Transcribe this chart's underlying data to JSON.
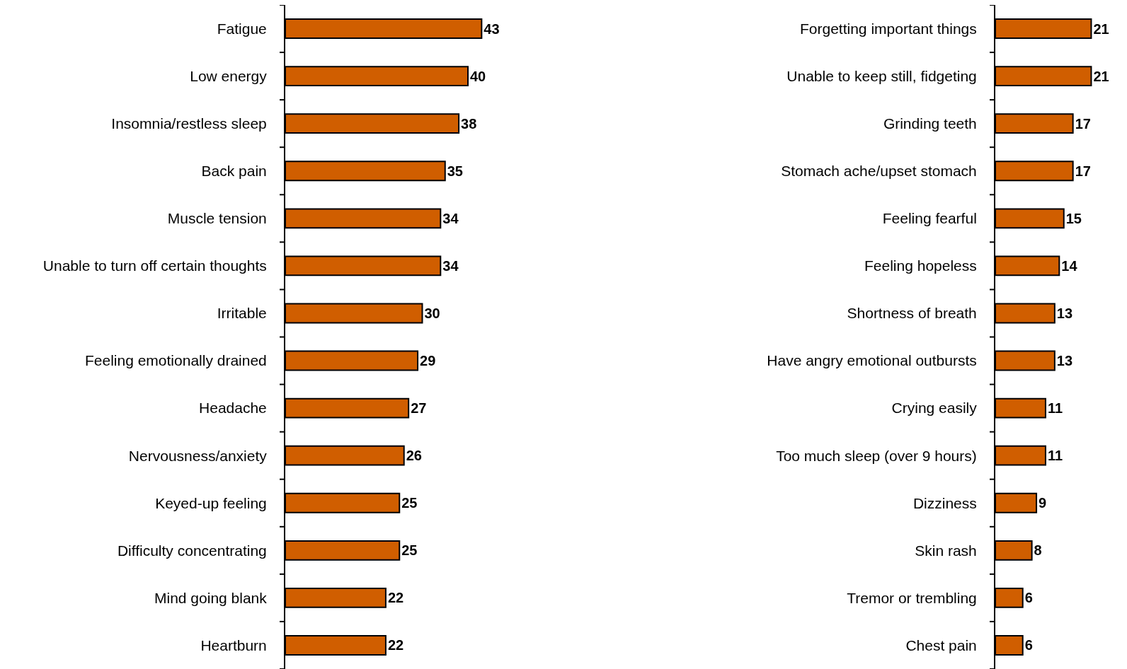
{
  "chart_data": [
    {
      "type": "bar",
      "orientation": "horizontal",
      "categories": [
        "Fatigue",
        "Low energy",
        "Insomnia/restless sleep",
        "Back pain",
        "Muscle tension",
        "Unable to turn off certain thoughts",
        "Irritable",
        "Feeling emotionally drained",
        "Headache",
        "Nervousness/anxiety",
        "Keyed-up feeling",
        "Difficulty concentrating",
        "Mind going blank",
        "Heartburn"
      ],
      "values": [
        43,
        40,
        38,
        35,
        34,
        34,
        30,
        29,
        27,
        26,
        25,
        25,
        22,
        22
      ],
      "color": "#d05e00",
      "data_labels": true,
      "tick_labels": "y"
    },
    {
      "type": "bar",
      "orientation": "horizontal",
      "categories": [
        "Forgetting important things",
        "Unable to keep still, fidgeting",
        "Grinding teeth",
        "Stomach ache/upset stomach",
        "Feeling fearful",
        "Feeling hopeless",
        "Shortness of breath",
        "Have angry emotional outbursts",
        "Crying easily",
        "Too much sleep (over 9 hours)",
        "Dizziness",
        "Skin rash",
        "Tremor or trembling",
        "Chest pain"
      ],
      "values": [
        21,
        21,
        17,
        17,
        15,
        14,
        13,
        13,
        11,
        11,
        9,
        8,
        6,
        6
      ],
      "color": "#d05e00",
      "data_labels": true,
      "tick_labels": "y"
    }
  ]
}
